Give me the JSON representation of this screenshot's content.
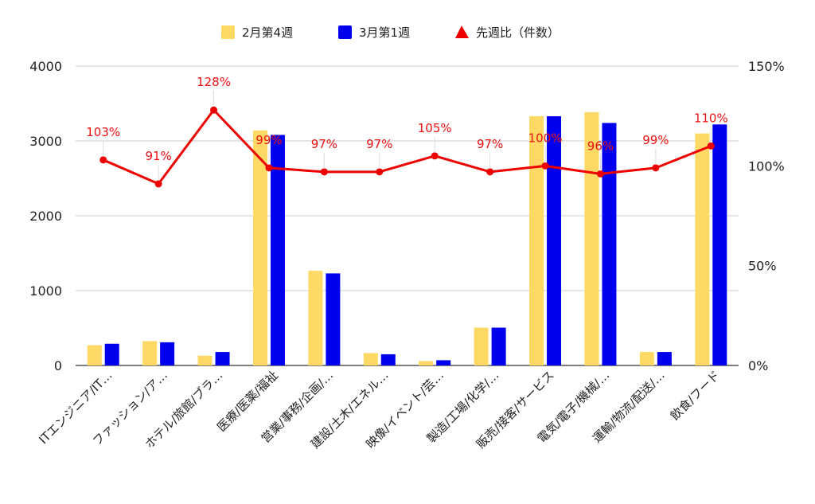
{
  "chart_data": {
    "type": "bar",
    "categories": [
      "ITエンジニア/IT…",
      "ファッション/ア…",
      "ホテル/旅館/ブラ…",
      "医療/医薬/福祉",
      "営業/事務/企画/…",
      "建設/土木/エネル…",
      "映像/イベント/芸…",
      "製造/工場/化学/…",
      "販売/接客/サービス",
      "電気/電子/機械/…",
      "運輸/物流/配送/…",
      "飲食/フード"
    ],
    "series": [
      {
        "name": "2月第4週",
        "type": "bar",
        "axis": "left",
        "color": "#FFD966",
        "values": [
          270,
          325,
          130,
          3140,
          1265,
          165,
          60,
          505,
          3330,
          3385,
          180,
          3100
        ]
      },
      {
        "name": "3月第1週",
        "type": "bar",
        "axis": "left",
        "color": "#0000EE",
        "values": [
          290,
          310,
          180,
          3080,
          1230,
          150,
          70,
          505,
          3330,
          3240,
          180,
          3220
        ]
      },
      {
        "name": "先週比（件数）",
        "type": "line",
        "axis": "right",
        "color": "#EE0000",
        "values": [
          103,
          91,
          128,
          99,
          97,
          97,
          105,
          97,
          100,
          96,
          99,
          110
        ],
        "labels": [
          "103%",
          "91%",
          "128%",
          "99%",
          "97%",
          "97%",
          "105%",
          "97%",
          "100%",
          "96%",
          "99%",
          "110%"
        ]
      }
    ],
    "y_left": {
      "min": 0,
      "max": 4000,
      "ticks": [
        0,
        1000,
        2000,
        3000,
        4000
      ],
      "tick_labels": [
        "0",
        "1000",
        "2000",
        "3000",
        "4000"
      ]
    },
    "y_right": {
      "min": 0,
      "max": 150,
      "ticks": [
        0,
        50,
        100,
        150
      ],
      "tick_labels": [
        "0%",
        "50%",
        "100%",
        "150%"
      ]
    },
    "legend": {
      "position": "top"
    },
    "grid": true
  }
}
